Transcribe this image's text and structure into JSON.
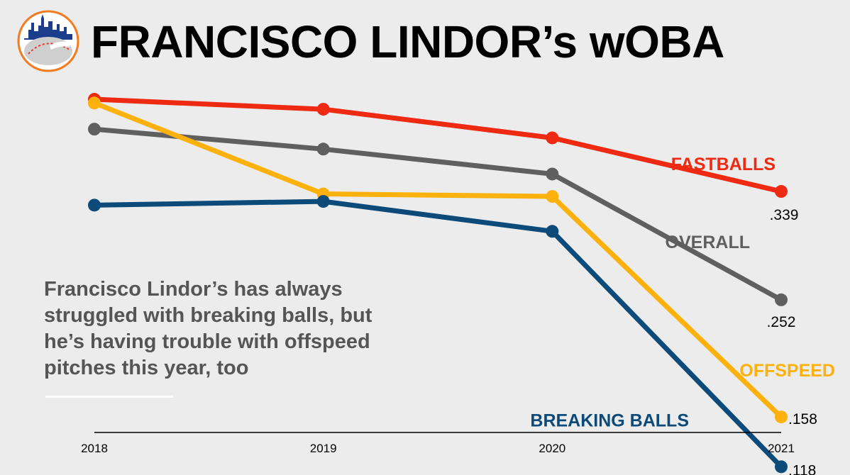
{
  "header": {
    "title": "FRANCISCO LINDOR’s wOBA"
  },
  "annotation": {
    "text": "Francisco Lindor’s has always struggled with breaking balls, but he’s having trouble with offspeed pitches this year, too"
  },
  "chart_data": {
    "type": "line",
    "title": "FRANCISCO LINDOR’s wOBA",
    "x": [
      "2018",
      "2019",
      "2020",
      "2021"
    ],
    "xlabel": "",
    "ylabel": "",
    "ylim": [
      0.1,
      0.45
    ],
    "grid": false,
    "legend": "inline labels at line ends",
    "series": [
      {
        "name": "FASTBALLS",
        "color": "#ee2a12",
        "values": [
          0.413,
          0.405,
          0.382,
          0.339
        ],
        "end_label": ".339"
      },
      {
        "name": "OVERALL",
        "color": "#5f5f5f",
        "values": [
          0.389,
          0.373,
          0.353,
          0.252
        ],
        "end_label": ".252"
      },
      {
        "name": "OFFSPEED",
        "color": "#fdb10c",
        "values": [
          0.41,
          0.337,
          0.335,
          0.158
        ],
        "end_label": ".158"
      },
      {
        "name": "BREAKING BALLS",
        "color": "#0c4a7a",
        "values": [
          0.328,
          0.331,
          0.307,
          0.118
        ],
        "end_label": ".118"
      }
    ]
  }
}
